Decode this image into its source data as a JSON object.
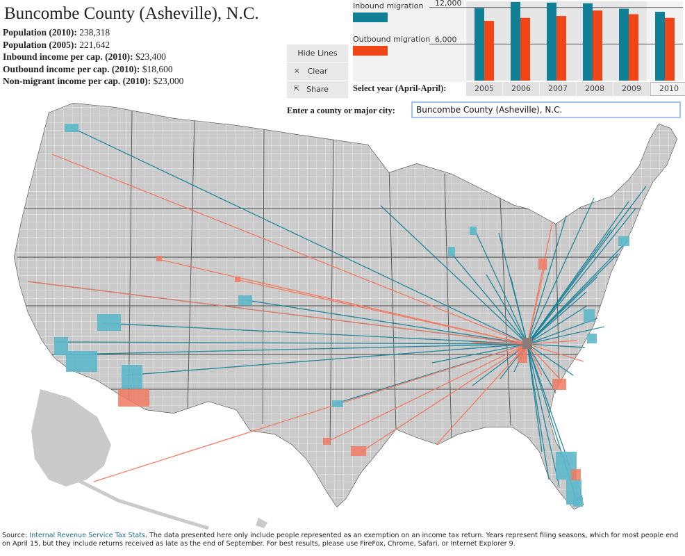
{
  "header": {
    "title": "Buncombe County (Asheville), N.C."
  },
  "stats": [
    {
      "label": "Population (2010):",
      "value": "238,318"
    },
    {
      "label": "Population (2005):",
      "value": "221,642"
    },
    {
      "label": "Inbound income per cap. (2010):",
      "value": "$23,400"
    },
    {
      "label": "Outbound income per cap. (2010):",
      "value": "$18,600"
    },
    {
      "label": "Non-migrant income per cap. (2010):",
      "value": "$23,000"
    }
  ],
  "controls": {
    "hide_lines": "Hide Lines",
    "clear": "Clear",
    "share": "Share",
    "clear_icon": "×",
    "share_icon": "⇱"
  },
  "legend": {
    "inbound": "Inbound migration",
    "outbound": "Outbound migration"
  },
  "colors": {
    "inbound": "#117f96",
    "outbound": "#f04617",
    "inbound_light": "#5db8cb",
    "outbound_light": "#f07a63",
    "land": "#cacaca",
    "border": "#ffffff",
    "state_border": "#4d4d4d"
  },
  "chart_data": {
    "type": "bar",
    "categories": [
      "2005",
      "2006",
      "2007",
      "2008",
      "2009",
      "2010"
    ],
    "series": [
      {
        "name": "Inbound migration",
        "values": [
          11900,
          12900,
          12800,
          12700,
          11800,
          11300
        ]
      },
      {
        "name": "Outbound migration",
        "values": [
          9800,
          10300,
          10600,
          11500,
          10900,
          10300
        ]
      }
    ],
    "y_ticks": [
      "12,000",
      "6,000"
    ],
    "y_tick_values": [
      12000,
      6000
    ],
    "ylim": [
      0,
      13000
    ],
    "grid": true,
    "selected": "2010"
  },
  "year_selector": {
    "label": "Select year (April-April):",
    "years": [
      "2005",
      "2006",
      "2007",
      "2008",
      "2009",
      "2010"
    ],
    "selected": "2010"
  },
  "search": {
    "label": "Enter a county or major city:",
    "value": "Buncombe County (Asheville), N.C."
  },
  "footer": {
    "source_prefix": "Source: ",
    "source_link": "Internal Revenue Service Tax Stats",
    "text": ". The data presented here only include people represented as an exemption on an income tax return. Years represent filing seasons, which for most people end on April 15, but they include returns received as late as the end of September. For best results, please use FireFox, Chrome, Safari, or Internet Explorer 9."
  }
}
